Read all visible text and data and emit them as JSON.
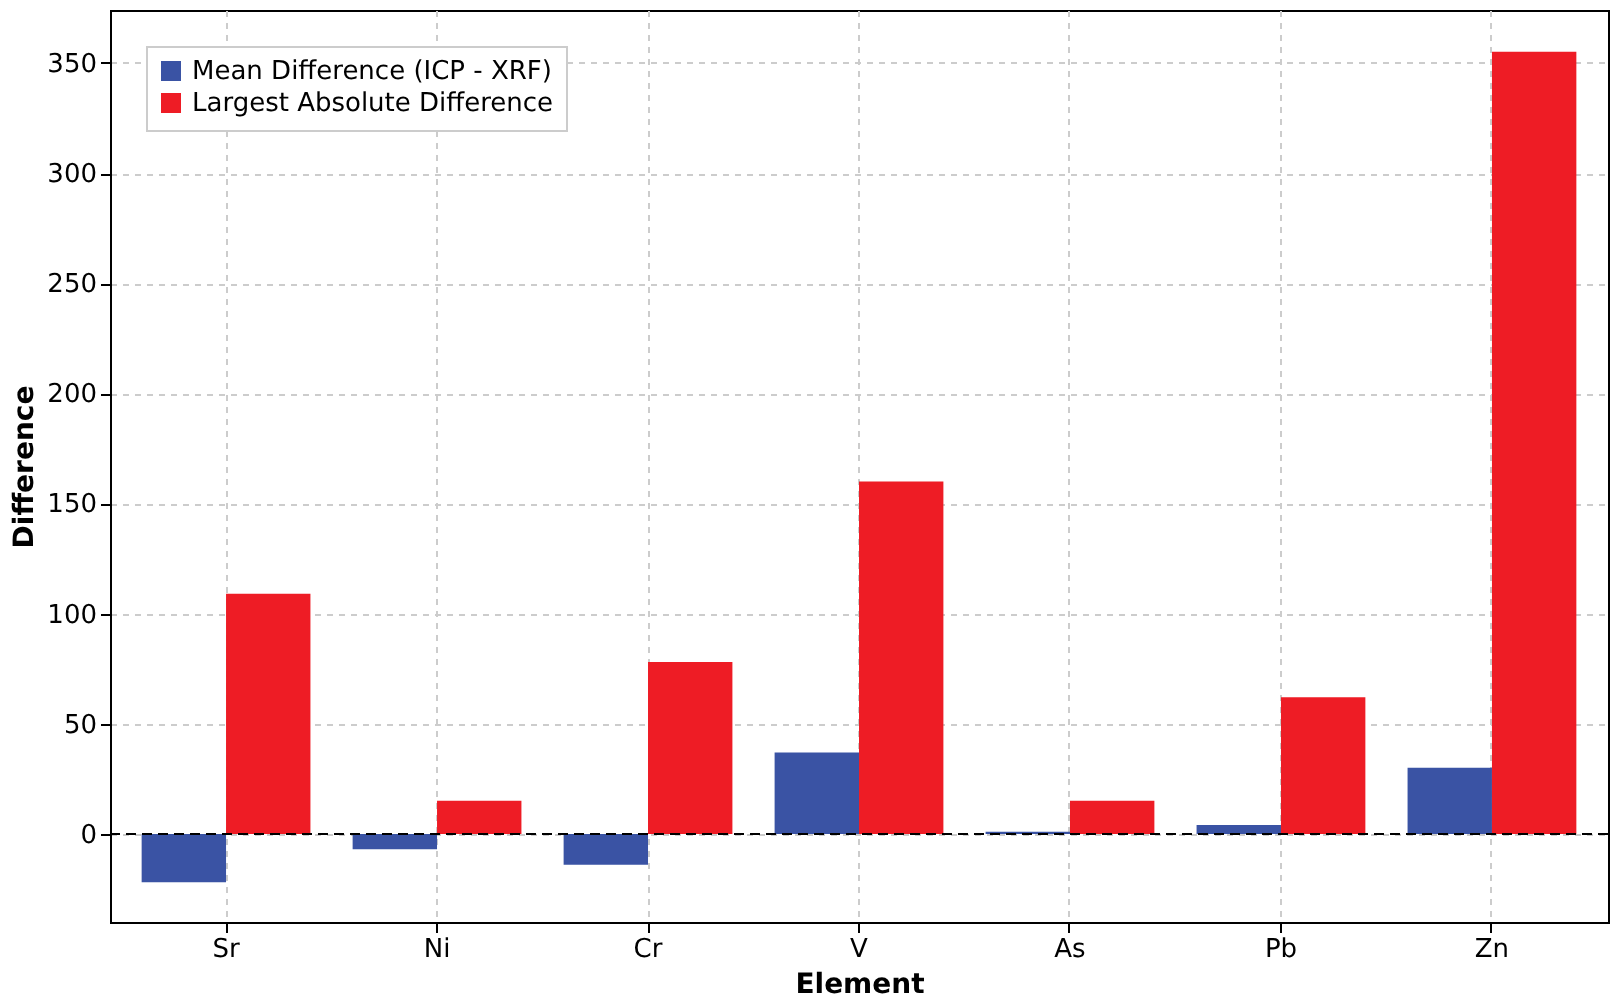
{
  "chart_data": {
    "type": "bar",
    "xlabel": "Element",
    "ylabel": "Difference",
    "categories": [
      "Sr",
      "Ni",
      "Cr",
      "V",
      "As",
      "Pb",
      "Zn"
    ],
    "series": [
      {
        "name": "Mean Difference (ICP - XRF)",
        "color": "#3a53a4",
        "values": [
          -22,
          -7,
          -14,
          37,
          1,
          4,
          30
        ]
      },
      {
        "name": "Largest Absolute Difference",
        "color": "#ee1c25",
        "values": [
          109,
          15,
          78,
          160,
          15,
          62,
          355
        ]
      }
    ],
    "ylim": [
      -40,
      374
    ],
    "yticks": [
      0,
      50,
      100,
      150,
      200,
      250,
      300,
      350
    ],
    "ref_lines": [
      {
        "axis": "y",
        "value": 0,
        "color": "#000000",
        "line_style": "dashed"
      }
    ],
    "grid": true,
    "legend": "top left"
  }
}
